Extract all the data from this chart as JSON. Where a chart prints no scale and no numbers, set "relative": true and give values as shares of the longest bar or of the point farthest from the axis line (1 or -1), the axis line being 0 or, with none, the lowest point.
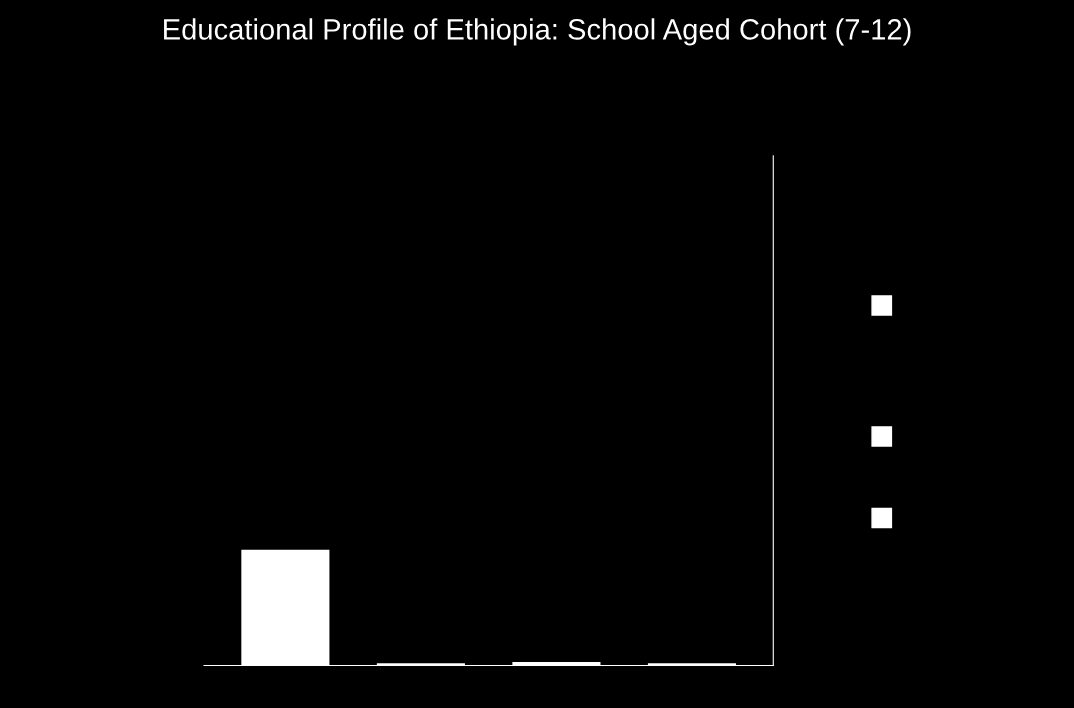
{
  "chart_data": {
    "type": "bar",
    "title": "Educational Profile of Ethiopia: School Aged Cohort (7-12)",
    "categories": [
      null,
      null,
      null,
      null
    ],
    "values": [
      1,
      0.02,
      0.03,
      0.02
    ],
    "color": "#ffffff",
    "relative": true
  }
}
